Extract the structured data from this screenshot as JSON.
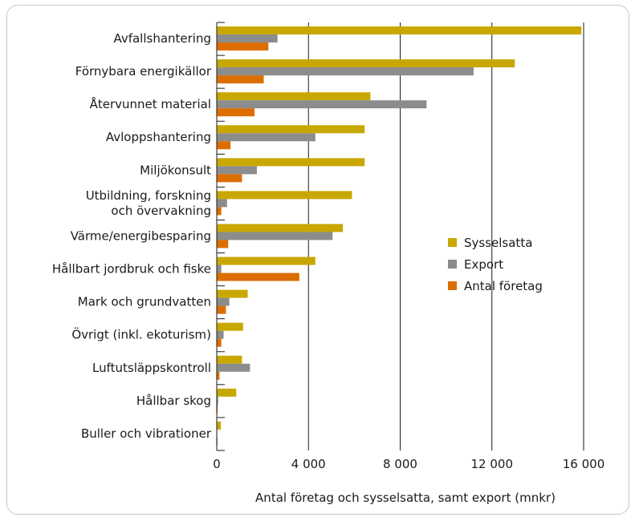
{
  "chart_data": {
    "type": "bar",
    "orientation": "horizontal",
    "title": "",
    "xlabel": "Antal företag och sysselsatta, samt export (mnkr)",
    "ylabel": "",
    "xlim": [
      0,
      16000
    ],
    "xticks": [
      0,
      4000,
      8000,
      12000,
      16000
    ],
    "xtick_labels": [
      "0",
      "4 000",
      "8 000",
      "12 000",
      "16 000"
    ],
    "grid": "vertical",
    "legend_position": "right",
    "categories": [
      [
        "Avfallshantering"
      ],
      [
        "Förnybara energikällor"
      ],
      [
        "Återvunnet material"
      ],
      [
        "Avloppshantering"
      ],
      [
        "Miljökonsult"
      ],
      [
        "Utbildning, forskning",
        "och övervakning"
      ],
      [
        "Värme/energibesparing"
      ],
      [
        "Hållbart jordbruk och fiske"
      ],
      [
        "Mark och grundvatten"
      ],
      [
        "Övrigt (inkl. ekoturism)"
      ],
      [
        "Luftutsläppskontroll"
      ],
      [
        "Hållbar skog"
      ],
      [
        "Buller och vibrationer"
      ]
    ],
    "series": [
      {
        "name": "Sysselsatta",
        "color": "#c8a800",
        "values": [
          15900,
          13000,
          6700,
          6450,
          6450,
          5900,
          5500,
          4300,
          1350,
          1150,
          1100,
          850,
          180
        ]
      },
      {
        "name": "Export",
        "color": "#8c8c8c",
        "values": [
          2650,
          11200,
          9150,
          4300,
          1750,
          450,
          5050,
          200,
          550,
          300,
          1450,
          60,
          20
        ]
      },
      {
        "name": "Antal företag",
        "color": "#dc6e00",
        "values": [
          2250,
          2050,
          1650,
          600,
          1100,
          200,
          500,
          3600,
          400,
          200,
          120,
          40,
          30
        ]
      }
    ]
  }
}
